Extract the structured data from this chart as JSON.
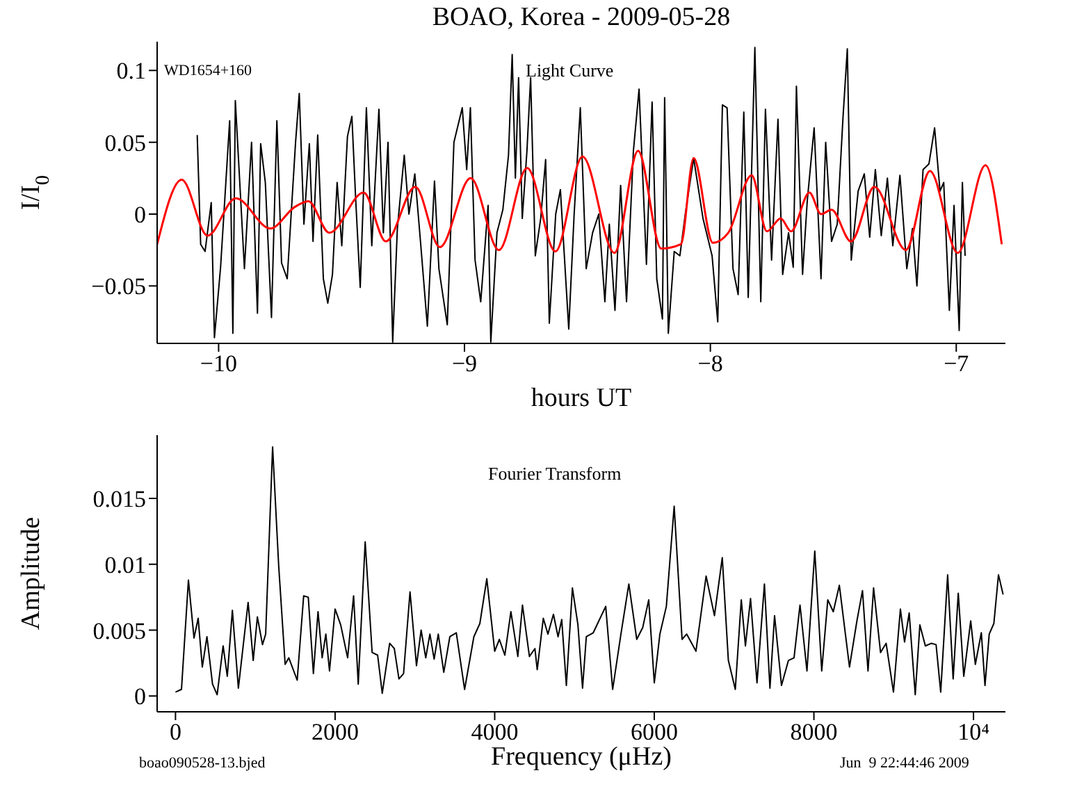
{
  "chart_data": [
    {
      "type": "line",
      "title": "BOAO, Korea - 2009-05-28",
      "xlabel": "hours UT",
      "ylabel": "I/I$_{0}$",
      "annotations": [
        "WD1654+160",
        "Light Curve"
      ],
      "xlim": [
        -10.25,
        -6.8
      ],
      "ylim": [
        -0.09,
        0.12
      ],
      "xticks": [
        {
          "value": -10,
          "label": "−10"
        },
        {
          "value": -9,
          "label": "−9"
        },
        {
          "value": -8,
          "label": "−8"
        },
        {
          "value": -7,
          "label": "−7"
        }
      ],
      "yticks": [
        {
          "value": -0.05,
          "label": "−0.05"
        },
        0,
        0.05,
        0.1
      ],
      "line_style": "solid",
      "series": [
        {
          "color": "#000000",
          "x": [
            -10.087,
            -10.073,
            -10.055,
            -10.03,
            -10.017,
            -9.992,
            -9.955,
            -9.942,
            -9.932,
            -9.895,
            -9.866,
            -9.842,
            -9.829,
            -9.81,
            -9.785,
            -9.763,
            -9.744,
            -9.721,
            -9.687,
            -9.672,
            -9.653,
            -9.631,
            -9.616,
            -9.597,
            -9.574,
            -9.556,
            -9.537,
            -9.518,
            -9.499,
            -9.476,
            -9.458,
            -9.443,
            -9.424,
            -9.399,
            -9.377,
            -9.348,
            -9.33,
            -9.311,
            -9.292,
            -9.273,
            -9.245,
            -9.226,
            -9.202,
            -9.179,
            -9.151,
            -9.122,
            -9.104,
            -9.07,
            -9.043,
            -9.009,
            -8.991,
            -8.976,
            -8.957,
            -8.934,
            -8.904,
            -8.893,
            -8.868,
            -8.844,
            -8.821,
            -8.806,
            -8.793,
            -8.78,
            -8.765,
            -8.746,
            -8.731,
            -8.712,
            -8.69,
            -8.67,
            -8.655,
            -8.629,
            -8.61,
            -8.576,
            -8.554,
            -8.529,
            -8.505,
            -8.479,
            -8.454,
            -8.429,
            -8.411,
            -8.388,
            -8.365,
            -8.341,
            -8.313,
            -8.29,
            -8.26,
            -8.237,
            -8.218,
            -8.195,
            -8.186,
            -8.171,
            -8.147,
            -8.124,
            -8.102,
            -8.068,
            -8.03,
            -7.993,
            -7.97,
            -7.951,
            -7.932,
            -7.908,
            -7.887,
            -7.864,
            -7.846,
            -7.819,
            -7.795,
            -7.776,
            -7.751,
            -7.725,
            -7.706,
            -7.682,
            -7.663,
            -7.65,
            -7.625,
            -7.606,
            -7.578,
            -7.55,
            -7.531,
            -7.507,
            -7.484,
            -7.461,
            -7.443,
            -7.427,
            -7.399,
            -7.374,
            -7.352,
            -7.329,
            -7.305,
            -7.28,
            -7.258,
            -7.229,
            -7.201,
            -7.178,
            -7.16,
            -7.135,
            -7.111,
            -7.088,
            -7.066,
            -7.051,
            -7.028,
            -7.009,
            -6.988,
            -6.975,
            -6.964
          ],
          "values": [
            0.055,
            -0.021,
            -0.026,
            0.008,
            -0.086,
            -0.037,
            0.065,
            -0.083,
            0.079,
            -0.038,
            0.05,
            -0.069,
            0.049,
            0.022,
            -0.072,
            0.065,
            -0.034,
            -0.045,
            0.05,
            0.084,
            -0.007,
            0.049,
            -0.019,
            0.055,
            -0.045,
            -0.062,
            -0.042,
            0.022,
            -0.022,
            0.054,
            0.068,
            0.012,
            -0.051,
            0.074,
            -0.022,
            0.073,
            -0.013,
            0.05,
            -0.089,
            -0.01,
            0.041,
            0,
            0.028,
            -0.019,
            -0.078,
            0.023,
            -0.038,
            -0.077,
            0.05,
            0.074,
            0.031,
            0.074,
            -0.032,
            -0.061,
            0.006,
            -0.089,
            -0.013,
            0.003,
            0.041,
            0.111,
            0.025,
            0.095,
            -0.003,
            0.044,
            0.095,
            -0.029,
            -0.003,
            0.038,
            -0.076,
            0,
            0.017,
            -0.08,
            0,
            0.074,
            -0.038,
            -0.013,
            0,
            -0.061,
            -0.007,
            -0.067,
            0.02,
            -0.061,
            0.044,
            0.087,
            -0.035,
            0.078,
            -0.045,
            -0.073,
            0.081,
            -0.083,
            -0.026,
            -0.029,
            0,
            0.039,
            -0.003,
            -0.029,
            -0.075,
            0.076,
            0.074,
            -0.038,
            -0.056,
            0.071,
            -0.058,
            0.116,
            -0.061,
            0.073,
            -0.032,
            0.066,
            -0.042,
            -0.013,
            -0.037,
            0.089,
            -0.042,
            0.009,
            0.06,
            -0.045,
            0.05,
            -0.019,
            -0.007,
            0.066,
            0.115,
            -0.032,
            0.016,
            0.028,
            -0.016,
            0.031,
            -0.015,
            0.025,
            -0.022,
            0.027,
            -0.038,
            -0.01,
            -0.05,
            0.031,
            0.035,
            0.06,
            0.016,
            0.022,
            -0.067,
            0.006,
            -0.081,
            0.022,
            -0.029
          ]
        },
        {
          "color": "#ff0000",
          "type": "line",
          "x": [
            -10.25,
            -10.15,
            -10.045,
            -9.93,
            -9.79,
            -9.69,
            -9.635,
            -9.55,
            -9.41,
            -9.32,
            -9.2,
            -9.1,
            -8.975,
            -8.86,
            -8.745,
            -8.63,
            -8.52,
            -8.39,
            -8.294,
            -8.2,
            -8.12,
            -8.068,
            -7.99,
            -7.927,
            -7.832,
            -7.77,
            -7.714,
            -7.672,
            -7.597,
            -7.55,
            -7.507,
            -7.428,
            -7.333,
            -7.205,
            -7.107,
            -6.994,
            -6.881,
            -6.815
          ],
          "values": [
            -0.021,
            0.024,
            -0.015,
            0.011,
            -0.01,
            0.005,
            0.009,
            -0.013,
            0.015,
            -0.019,
            0.019,
            -0.023,
            0.025,
            -0.025,
            0.032,
            -0.026,
            0.04,
            -0.027,
            0.044,
            -0.024,
            -0.021,
            0.039,
            -0.02,
            -0.013,
            0.027,
            -0.012,
            -0.003,
            -0.012,
            0.015,
            0,
            0.003,
            -0.019,
            0.019,
            -0.025,
            0.03,
            -0.027,
            0.034,
            -0.021
          ]
        }
      ]
    },
    {
      "type": "line",
      "xlabel": "Frequency (μHz)",
      "ylabel": "Amplitude",
      "annotations": [
        "Fourier Transform",
        "boao090528-13.bjed",
        "Jun  9 22:44:46 2009"
      ],
      "xlim": [
        -230,
        10400
      ],
      "ylim": [
        -0.0012,
        0.0198
      ],
      "xticks": [
        0,
        2000,
        4000,
        6000,
        8000,
        {
          "value": 10000,
          "label": "10⁴"
        }
      ],
      "yticks": [
        0,
        0.005,
        0.01,
        0.015
      ],
      "line_style": "solid",
      "series": [
        {
          "color": "#000000",
          "x": [
            0,
            75,
            162,
            232,
            284,
            336,
            394,
            464,
            522,
            597,
            649,
            713,
            788,
            910,
            974,
            1026,
            1090,
            1130,
            1217,
            1293,
            1374,
            1420,
            1525,
            1606,
            1664,
            1728,
            1786,
            1838,
            1884,
            1930,
            2000,
            2070,
            2157,
            2232,
            2290,
            2377,
            2464,
            2533,
            2591,
            2684,
            2742,
            2800,
            2858,
            2939,
            3020,
            3078,
            3136,
            3188,
            3241,
            3293,
            3362,
            3438,
            3519,
            3623,
            3739,
            3814,
            3901,
            4000,
            4058,
            4127,
            4203,
            4290,
            4348,
            4435,
            4504,
            4533,
            4609,
            4667,
            4736,
            4794,
            4840,
            4898,
            4974,
            5043,
            5101,
            5148,
            5235,
            5391,
            5478,
            5582,
            5681,
            5780,
            5855,
            5930,
            6000,
            6070,
            6151,
            6249,
            6348,
            6406,
            6522,
            6649,
            6754,
            6852,
            6928,
            7015,
            7090,
            7142,
            7206,
            7287,
            7380,
            7449,
            7507,
            7594,
            7681,
            7751,
            7826,
            7913,
            8011,
            8098,
            8174,
            8243,
            8319,
            8446,
            8539,
            8609,
            8678,
            8748,
            8835,
            8905,
            8997,
            9084,
            9136,
            9194,
            9270,
            9328,
            9397,
            9473,
            9531,
            9589,
            9676,
            9745,
            9809,
            9878,
            9965,
            10023,
            10098,
            10144,
            10197,
            10255,
            10313,
            10371
          ],
          "values": [
            0.0003,
            0.0005,
            0.0088,
            0.0044,
            0.0059,
            0.0022,
            0.0045,
            0.0009,
            0.0001,
            0.0038,
            0.0015,
            0.0065,
            0.0006,
            0.0071,
            0.0027,
            0.006,
            0.0039,
            0.0047,
            0.0189,
            0.0099,
            0.0024,
            0.0029,
            0.0012,
            0.0076,
            0.0075,
            0.0017,
            0.0064,
            0.0029,
            0.0047,
            0.0019,
            0.0066,
            0.0054,
            0.0029,
            0.0076,
            0.0009,
            0.0117,
            0.0033,
            0.0031,
            0.0002,
            0.004,
            0.0036,
            0.0013,
            0.0017,
            0.0079,
            0.0023,
            0.005,
            0.0029,
            0.0047,
            0.0028,
            0.0047,
            0.0018,
            0.0045,
            0.0048,
            0.0005,
            0.0045,
            0.0055,
            0.0089,
            0.0034,
            0.0043,
            0.0031,
            0.0064,
            0.003,
            0.0069,
            0.003,
            0.0036,
            0.002,
            0.0059,
            0.0047,
            0.0062,
            0.0045,
            0.0058,
            0.0008,
            0.0082,
            0.0054,
            0.0006,
            0.0045,
            0.0048,
            0.0068,
            0.0005,
            0.0047,
            0.0085,
            0.0043,
            0.0052,
            0.0073,
            0.001,
            0.0047,
            0.0068,
            0.0144,
            0.0043,
            0.0047,
            0.0034,
            0.0091,
            0.0061,
            0.0105,
            0.0027,
            0.0005,
            0.0073,
            0.0038,
            0.0074,
            0.001,
            0.0085,
            0.0006,
            0.0061,
            0.0008,
            0.0027,
            0.0029,
            0.0069,
            0.0019,
            0.011,
            0.0019,
            0.0073,
            0.0064,
            0.0084,
            0.0022,
            0.0057,
            0.008,
            0.0019,
            0.0082,
            0.0033,
            0.004,
            0.0003,
            0.0066,
            0.0041,
            0.0063,
            0.0001,
            0.0054,
            0.0038,
            0.004,
            0.0039,
            0.0003,
            0.0092,
            0.0013,
            0.0078,
            0.0015,
            0.0057,
            0.0024,
            0.0048,
            0.0008,
            0.0047,
            0.0055,
            0.0092,
            0.0077
          ]
        }
      ]
    }
  ]
}
